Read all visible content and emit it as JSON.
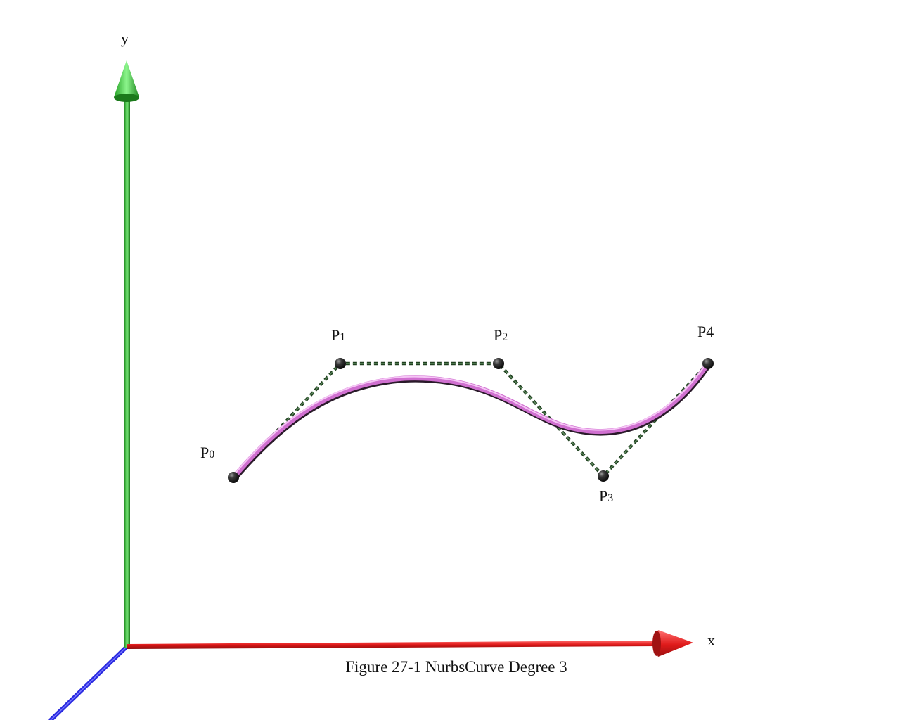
{
  "axes": {
    "x_label": "x",
    "y_label": "y",
    "x_color": "#e02020",
    "y_color": "#2fc12f",
    "z_color": "#2a2ae0"
  },
  "control_points": [
    {
      "main": "P",
      "sub": "0"
    },
    {
      "main": "P",
      "sub": "1"
    },
    {
      "main": "P",
      "sub": "2"
    },
    {
      "main": "P",
      "sub": "3"
    },
    {
      "main": "P4",
      "sub": ""
    }
  ],
  "curve": {
    "degree": 3,
    "color": "#e080e0"
  },
  "control_polygon": {
    "style": "dashed",
    "color": "#2f5a2f"
  },
  "caption": "Figure 27-1 NurbsCurve Degree 3"
}
